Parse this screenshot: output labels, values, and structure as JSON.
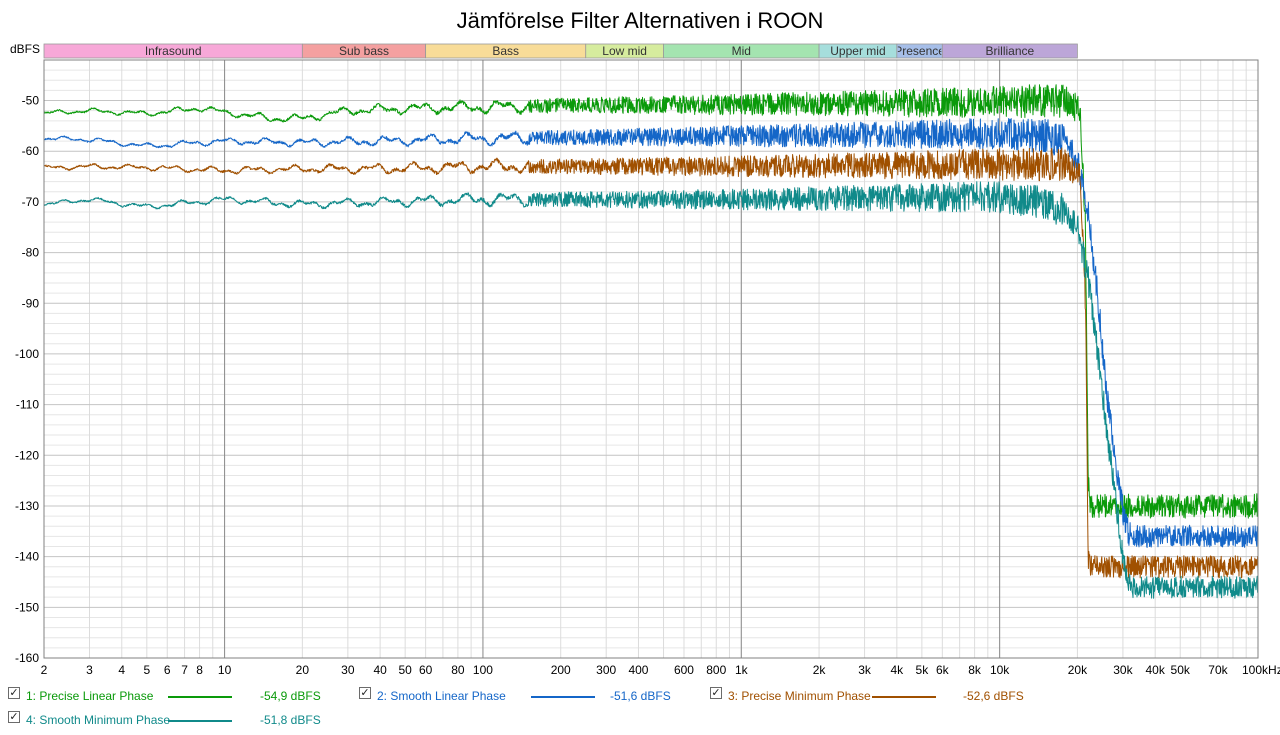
{
  "chart_data": {
    "type": "line",
    "title": "Jämförelse Filter Alternativen i ROON",
    "ylabel": "dBFS",
    "xscale": "log",
    "xlim": [
      2,
      100000
    ],
    "ylim": [
      -160,
      -42
    ],
    "grid": true,
    "y_ticks": [
      -50,
      -60,
      -70,
      -80,
      -90,
      -100,
      -110,
      -120,
      -130,
      -140,
      -150,
      -160
    ],
    "x_ticks": [
      {
        "v": 2,
        "label": "2"
      },
      {
        "v": 3,
        "label": "3"
      },
      {
        "v": 4,
        "label": "4"
      },
      {
        "v": 5,
        "label": "5"
      },
      {
        "v": 6,
        "label": "6"
      },
      {
        "v": 7,
        "label": "7"
      },
      {
        "v": 8,
        "label": "8"
      },
      {
        "v": 10,
        "label": "10"
      },
      {
        "v": 20,
        "label": "20"
      },
      {
        "v": 30,
        "label": "30"
      },
      {
        "v": 40,
        "label": "40"
      },
      {
        "v": 50,
        "label": "50"
      },
      {
        "v": 60,
        "label": "60"
      },
      {
        "v": 80,
        "label": "80"
      },
      {
        "v": 100,
        "label": "100"
      },
      {
        "v": 200,
        "label": "200"
      },
      {
        "v": 300,
        "label": "300"
      },
      {
        "v": 400,
        "label": "400"
      },
      {
        "v": 600,
        "label": "600"
      },
      {
        "v": 800,
        "label": "800"
      },
      {
        "v": 1000,
        "label": "1k"
      },
      {
        "v": 2000,
        "label": "2k"
      },
      {
        "v": 3000,
        "label": "3k"
      },
      {
        "v": 4000,
        "label": "4k"
      },
      {
        "v": 5000,
        "label": "5k"
      },
      {
        "v": 6000,
        "label": "6k"
      },
      {
        "v": 8000,
        "label": "8k"
      },
      {
        "v": 10000,
        "label": "10k"
      },
      {
        "v": 20000,
        "label": "20k"
      },
      {
        "v": 30000,
        "label": "30k"
      },
      {
        "v": 40000,
        "label": "40k"
      },
      {
        "v": 50000,
        "label": "50k"
      },
      {
        "v": 70000,
        "label": "70k"
      },
      {
        "v": 100000,
        "label": "100kHz"
      }
    ],
    "bands": [
      {
        "label": "Infrasound",
        "from": 2,
        "to": 20,
        "color": "#f7a8d8"
      },
      {
        "label": "Sub bass",
        "from": 20,
        "to": 60,
        "color": "#f4a0a0"
      },
      {
        "label": "Bass",
        "from": 60,
        "to": 250,
        "color": "#f8dc98"
      },
      {
        "label": "Low mid",
        "from": 250,
        "to": 500,
        "color": "#d6ec9e"
      },
      {
        "label": "Mid",
        "from": 500,
        "to": 2000,
        "color": "#a4e4b0"
      },
      {
        "label": "Upper mid",
        "from": 2000,
        "to": 4000,
        "color": "#a6dedc"
      },
      {
        "label": "Presence",
        "from": 4000,
        "to": 6000,
        "color": "#a6bee8"
      },
      {
        "label": "Brilliance",
        "from": 6000,
        "to": 20000,
        "color": "#bca6d8"
      }
    ],
    "series": [
      {
        "name": "1: Precise Linear Phase",
        "value": "-54,9 dBFS",
        "color": "#0a9a0a",
        "noise": [
          0.5,
          3.5
        ],
        "floor_noise": 2.4,
        "x": [
          2,
          3,
          5,
          8,
          10,
          15,
          20,
          30,
          60,
          200,
          1000,
          5000,
          18000,
          20500,
          21500,
          22000,
          22500,
          100000
        ],
        "y": [
          -52.5,
          -52,
          -52.6,
          -51.5,
          -52.3,
          -53.5,
          -53.5,
          -52,
          -51.5,
          -51,
          -50.8,
          -50.5,
          -50,
          -52,
          -75,
          -125,
          -130,
          -130
        ]
      },
      {
        "name": "2: Smooth Linear Phase",
        "value": "-51,6 dBFS",
        "color": "#1466c8",
        "noise": [
          0.5,
          3.5
        ],
        "floor_noise": 2.2,
        "x": [
          2,
          3,
          5,
          10,
          20,
          40,
          100,
          1000,
          10000,
          15000,
          18000,
          20000,
          22000,
          24000,
          26000,
          28000,
          30000,
          32000,
          100000
        ],
        "y": [
          -57.5,
          -57.7,
          -59,
          -58,
          -58.3,
          -58,
          -57.5,
          -57,
          -56.5,
          -57,
          -58,
          -62,
          -72,
          -89,
          -108,
          -121,
          -131,
          -136,
          -136
        ]
      },
      {
        "name": "3: Precise Minimum Phase",
        "value": "-52,6 dBFS",
        "color": "#a05000",
        "noise": [
          0.5,
          3.5
        ],
        "floor_noise": 2.2,
        "x": [
          2,
          3,
          5,
          10,
          20,
          40,
          100,
          1000,
          18000,
          20500,
          21500,
          22000,
          22500,
          100000
        ],
        "y": [
          -63.3,
          -63,
          -63.2,
          -63.8,
          -63.5,
          -63.5,
          -63,
          -63,
          -62.5,
          -65,
          -90,
          -140,
          -142,
          -142
        ]
      },
      {
        "name": "4: Smooth Minimum Phase",
        "value": "-51,8 dBFS",
        "color": "#108a8a",
        "noise": [
          0.5,
          3.5
        ],
        "floor_noise": 2.2,
        "x": [
          2,
          3,
          5,
          10,
          20,
          40,
          100,
          1000,
          10000,
          15000,
          18000,
          20000,
          22000,
          24000,
          26000,
          28000,
          30000,
          32000,
          100000
        ],
        "y": [
          -70.5,
          -69.5,
          -71,
          -69.5,
          -70.5,
          -70,
          -69.5,
          -69.5,
          -69,
          -70,
          -72,
          -75,
          -85,
          -100,
          -115,
          -128,
          -140,
          -146,
          -146
        ]
      }
    ]
  }
}
